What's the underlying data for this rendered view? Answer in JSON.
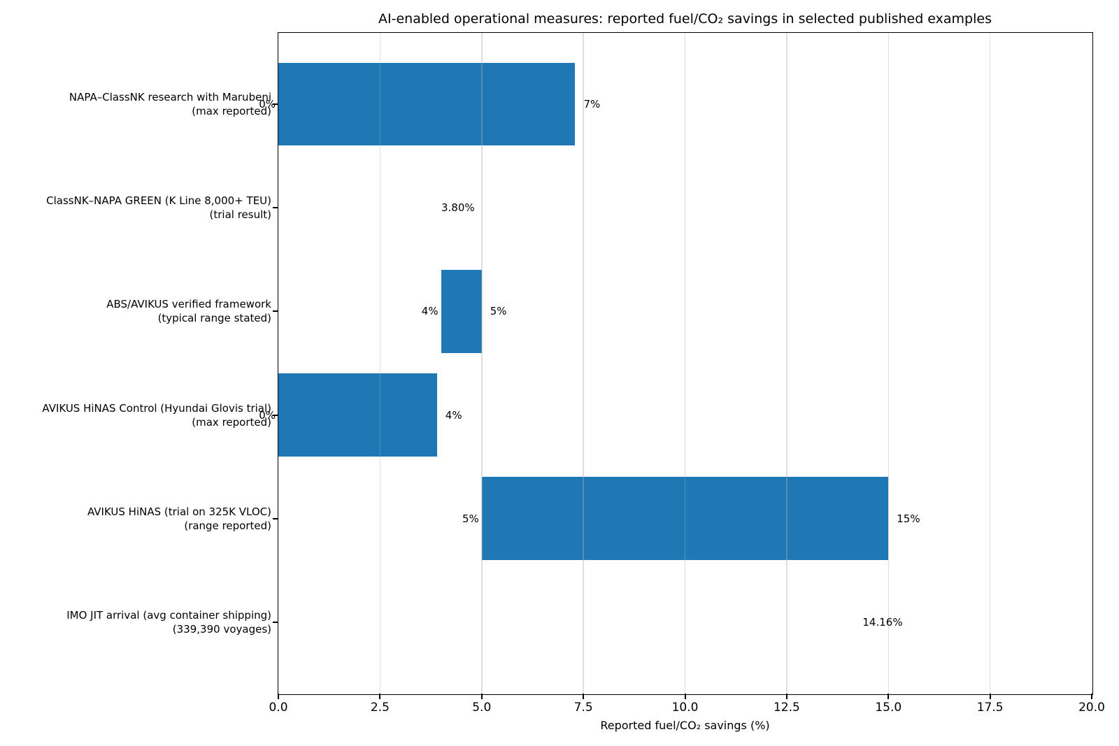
{
  "chart_data": {
    "type": "bar",
    "orientation": "horizontal",
    "title": "AI-enabled operational measures: reported fuel/CO₂ savings in selected published examples",
    "xlabel": "Reported fuel/CO₂ savings (%)",
    "xlim": [
      0,
      20
    ],
    "xticks": [
      "0.0",
      "2.5",
      "5.0",
      "7.5",
      "10.0",
      "12.5",
      "15.0",
      "17.5",
      "20.0"
    ],
    "grid": "vertical-x",
    "grid_color": "rgba(176,176,176,0.4)",
    "bar_color": "#1f77b4",
    "rows": [
      {
        "category": "NAPA–ClassNK research with Marubeni",
        "category_line2": "(max reported)",
        "min": 0,
        "max": 7.3,
        "min_label": "0%",
        "max_label": "7%"
      },
      {
        "category": "ClassNK–NAPA GREEN (K Line 8,000+ TEU)",
        "category_line2": "(trial result)",
        "min": 3.8,
        "max": 3.8,
        "min_label": "",
        "max_label": "3.80%"
      },
      {
        "category": "ABS/AVIKUS verified framework",
        "category_line2": "(typical range stated)",
        "min": 4,
        "max": 5,
        "min_label": "4%",
        "max_label": "5%"
      },
      {
        "category": "AVIKUS HiNAS Control (Hyundai Glovis trial)",
        "category_line2": "(max reported)",
        "min": 0,
        "max": 3.9,
        "min_label": "0%",
        "max_label": "4%"
      },
      {
        "category": "AVIKUS HiNAS (trial on 325K VLOC)",
        "category_line2": "(range reported)",
        "min": 5,
        "max": 15,
        "min_label": "5%",
        "max_label": "15%"
      },
      {
        "category": "IMO JIT arrival (avg container shipping)",
        "category_line2": "(339,390 voyages)",
        "min": 14.16,
        "max": 14.16,
        "min_label": "",
        "max_label": "14.16%"
      }
    ]
  }
}
